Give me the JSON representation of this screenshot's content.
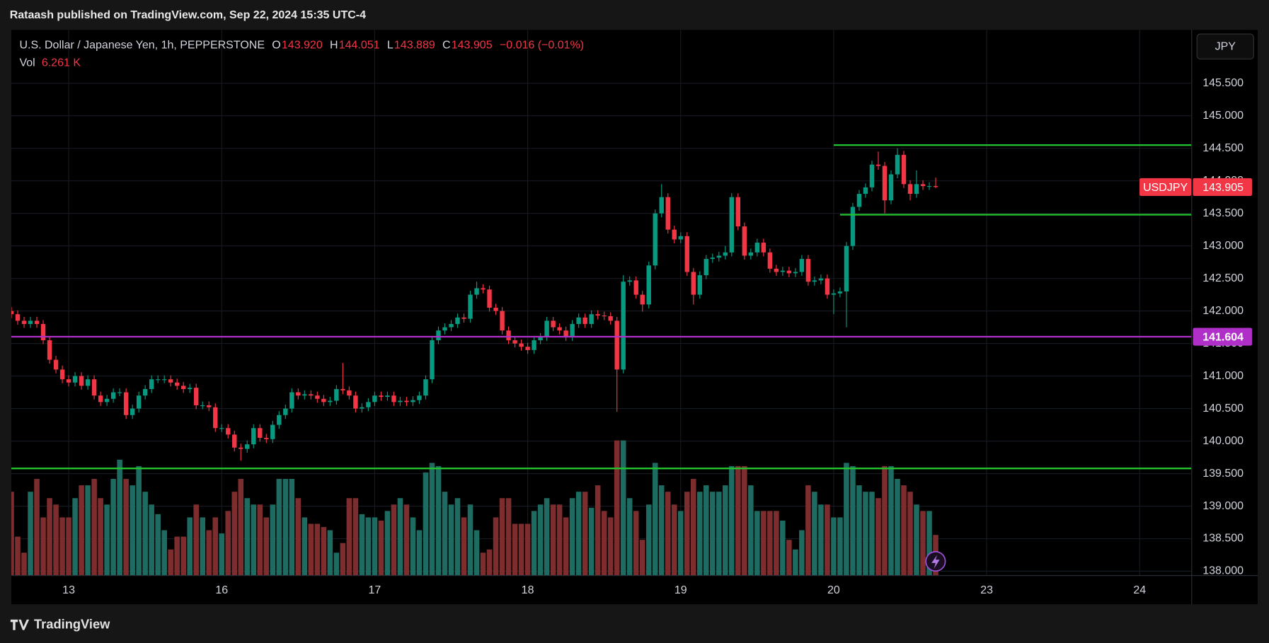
{
  "header": {
    "publisher_line": "Rataash published on TradingView.com, Sep 22, 2024 15:35 UTC-4"
  },
  "toolbar": {
    "currency": "JPY"
  },
  "footer": {
    "brand": "TradingView"
  },
  "chart_data": {
    "type": "candlestick",
    "title": "U.S. Dollar / Japanese Yen, 1h, PEPPERSTONE",
    "symbol": "USDJPY",
    "legend": [
      {
        "label": "O",
        "value": "143.920"
      },
      {
        "label": "H",
        "value": "144.051"
      },
      {
        "label": "L",
        "value": "143.889"
      },
      {
        "label": "C",
        "value": "143.905"
      }
    ],
    "change": "−0.016 (−0.01%)",
    "volume_legend": {
      "label": "Vol",
      "value": "6.261 K"
    },
    "up_color": "#089981",
    "down_color": "#f23645",
    "volume_up_color": "#1d6b61",
    "volume_down_color": "#7d2d2d",
    "xlim": [
      0,
      185.1
    ],
    "xticks": [
      {
        "value": 9,
        "label": "13"
      },
      {
        "value": 33,
        "label": "16"
      },
      {
        "value": 57,
        "label": "17"
      },
      {
        "value": 81,
        "label": "18"
      },
      {
        "value": 105,
        "label": "19"
      },
      {
        "value": 129,
        "label": "20"
      },
      {
        "value": 153,
        "label": "23"
      },
      {
        "value": 177,
        "label": "24"
      }
    ],
    "ylim": [
      137.94,
      146.32
    ],
    "yticks": [
      {
        "value": 138,
        "label": "138.000"
      },
      {
        "value": 138.5,
        "label": "138.500"
      },
      {
        "value": 139,
        "label": "139.000"
      },
      {
        "value": 139.5,
        "label": "139.500"
      },
      {
        "value": 140,
        "label": "140.000"
      },
      {
        "value": 140.5,
        "label": "140.500"
      },
      {
        "value": 141,
        "label": "141.000"
      },
      {
        "value": 141.5,
        "label": "141.500"
      },
      {
        "value": 142,
        "label": "142.000"
      },
      {
        "value": 142.5,
        "label": "142.500"
      },
      {
        "value": 143,
        "label": "143.000"
      },
      {
        "value": 143.5,
        "label": "143.500"
      },
      {
        "value": 144,
        "label": "144.000"
      },
      {
        "value": 144.5,
        "label": "144.500"
      },
      {
        "value": 145,
        "label": "145.000"
      },
      {
        "value": 145.5,
        "label": "145.500"
      }
    ],
    "volume_ylim": [
      0,
      85
    ],
    "grid": true,
    "levels": [
      {
        "value": 144.55,
        "start": 129,
        "color": "#22c32e"
      },
      {
        "value": 143.48,
        "start": 130,
        "color": "#22c32e"
      },
      {
        "value": 141.604,
        "start": 0,
        "color": "#b02fc9",
        "show_label": true
      },
      {
        "value": 139.58,
        "start": 0,
        "color": "#22c32e"
      }
    ],
    "open": [
      142.0,
      141.95,
      141.85,
      141.8,
      141.85,
      141.8,
      141.55,
      141.25,
      141.1,
      140.95,
      140.9,
      141.0,
      140.85,
      140.95,
      140.7,
      140.6,
      140.65,
      140.75,
      140.75,
      140.4,
      140.5,
      140.7,
      140.8,
      140.95,
      140.95,
      140.95,
      140.9,
      140.85,
      140.8,
      140.82,
      140.55,
      140.55,
      140.52,
      140.2,
      140.2,
      140.1,
      139.9,
      139.88,
      139.95,
      140.2,
      140.05,
      140.03,
      140.25,
      140.4,
      140.5,
      140.75,
      140.7,
      140.72,
      140.7,
      140.65,
      140.6,
      140.62,
      140.8,
      140.78,
      140.7,
      140.5,
      140.52,
      140.6,
      140.7,
      140.68,
      140.7,
      140.6,
      140.62,
      140.6,
      140.63,
      140.7,
      140.95,
      141.55,
      141.7,
      141.75,
      141.8,
      141.9,
      141.88,
      142.25,
      142.35,
      142.33,
      142.05,
      142.0,
      141.7,
      141.55,
      141.5,
      141.45,
      141.4,
      141.55,
      141.6,
      141.85,
      141.75,
      141.7,
      141.6,
      141.8,
      141.9,
      141.8,
      141.95,
      141.93,
      141.92,
      141.85,
      141.1,
      142.45,
      142.47,
      142.25,
      142.1,
      142.7,
      143.5,
      143.75,
      143.25,
      143.1,
      143.15,
      142.6,
      142.25,
      142.55,
      142.8,
      142.82,
      142.85,
      142.9,
      143.75,
      143.3,
      142.85,
      142.9,
      143.05,
      142.9,
      142.65,
      142.6,
      142.62,
      142.58,
      142.6,
      142.8,
      142.45,
      142.47,
      142.5,
      142.25,
      142.27,
      142.3,
      143.0,
      143.6,
      143.8,
      143.9,
      144.25,
      144.23,
      143.7,
      144.1,
      144.4,
      143.95,
      143.8,
      143.95,
      143.92,
      143.92
    ],
    "high": [
      142.06,
      142.01,
      141.91,
      141.91,
      141.91,
      141.86,
      141.61,
      141.31,
      141.16,
      141.01,
      141.06,
      141.06,
      141.01,
      141.01,
      140.76,
      140.71,
      140.81,
      140.81,
      140.81,
      140.56,
      140.76,
      140.86,
      141.01,
      141.01,
      141.01,
      141.01,
      140.96,
      140.91,
      140.88,
      140.88,
      140.61,
      140.61,
      140.58,
      140.26,
      140.26,
      140.16,
      139.96,
      140.01,
      140.26,
      140.26,
      140.11,
      140.31,
      140.46,
      140.56,
      140.81,
      140.81,
      140.78,
      140.78,
      140.76,
      140.71,
      140.68,
      140.86,
      141.2,
      140.84,
      140.76,
      140.58,
      140.66,
      140.76,
      140.76,
      140.76,
      140.76,
      140.68,
      140.68,
      140.69,
      140.76,
      141.01,
      141.61,
      141.76,
      141.81,
      141.86,
      141.96,
      141.96,
      142.31,
      142.45,
      142.41,
      142.39,
      142.11,
      142.06,
      141.76,
      141.61,
      141.56,
      141.51,
      141.61,
      141.66,
      141.91,
      141.91,
      141.81,
      141.76,
      141.86,
      141.96,
      141.96,
      142.01,
      142.01,
      141.99,
      141.98,
      141.91,
      142.55,
      142.53,
      142.53,
      142.31,
      142.76,
      143.56,
      143.95,
      143.81,
      143.31,
      143.21,
      143.21,
      142.66,
      142.61,
      142.86,
      142.88,
      142.91,
      143.0,
      143.81,
      143.81,
      143.36,
      142.96,
      143.11,
      143.11,
      142.96,
      142.71,
      142.68,
      142.68,
      142.66,
      142.86,
      142.86,
      142.53,
      142.56,
      142.56,
      142.33,
      142.36,
      143.06,
      143.66,
      143.86,
      143.96,
      144.31,
      144.45,
      144.29,
      144.16,
      144.5,
      144.46,
      144.01,
      144.16,
      144.01,
      143.98,
      144.051
    ],
    "low": [
      141.89,
      141.79,
      141.74,
      141.74,
      141.74,
      141.49,
      141.19,
      141.04,
      140.89,
      140.84,
      140.84,
      140.79,
      140.79,
      140.64,
      140.54,
      140.54,
      140.59,
      140.69,
      140.34,
      140.34,
      140.44,
      140.64,
      140.74,
      140.89,
      140.89,
      140.84,
      140.79,
      140.74,
      140.74,
      140.49,
      140.49,
      140.46,
      140.14,
      140.14,
      140.04,
      139.84,
      139.7,
      139.82,
      139.89,
      139.99,
      139.97,
      139.97,
      140.19,
      140.34,
      140.44,
      140.64,
      140.64,
      140.64,
      140.59,
      140.54,
      140.54,
      140.56,
      140.72,
      140.64,
      140.44,
      140.44,
      140.46,
      140.54,
      140.62,
      140.62,
      140.54,
      140.54,
      140.54,
      140.54,
      140.57,
      140.64,
      140.89,
      141.49,
      141.64,
      141.69,
      141.74,
      141.82,
      141.82,
      142.19,
      142.27,
      141.99,
      141.94,
      141.64,
      141.49,
      141.44,
      141.39,
      141.34,
      141.34,
      141.49,
      141.54,
      141.69,
      141.64,
      141.54,
      141.54,
      141.74,
      141.74,
      141.74,
      141.87,
      141.86,
      141.79,
      140.45,
      141.04,
      142.39,
      142.19,
      141.99,
      142.04,
      142.64,
      143.44,
      143.19,
      143.04,
      143.04,
      142.54,
      142.1,
      142.19,
      142.49,
      142.74,
      142.76,
      142.79,
      142.84,
      143.24,
      142.79,
      142.79,
      142.84,
      142.84,
      142.59,
      142.54,
      142.54,
      142.52,
      142.52,
      142.54,
      142.39,
      142.39,
      142.41,
      142.19,
      141.95,
      142.21,
      141.75,
      142.94,
      143.54,
      143.74,
      143.84,
      144.17,
      143.5,
      143.64,
      144.04,
      143.89,
      143.7,
      143.74,
      143.86,
      143.86,
      143.889
    ],
    "close": [
      141.95,
      141.85,
      141.8,
      141.85,
      141.8,
      141.55,
      141.25,
      141.1,
      140.95,
      140.9,
      141.0,
      140.85,
      140.95,
      140.7,
      140.6,
      140.65,
      140.75,
      140.75,
      140.4,
      140.5,
      140.7,
      140.8,
      140.95,
      140.95,
      140.95,
      140.9,
      140.85,
      140.8,
      140.82,
      140.55,
      140.55,
      140.52,
      140.2,
      140.2,
      140.1,
      139.9,
      139.88,
      139.95,
      140.2,
      140.05,
      140.03,
      140.25,
      140.4,
      140.5,
      140.75,
      140.7,
      140.72,
      140.7,
      140.65,
      140.6,
      140.62,
      140.8,
      140.78,
      140.7,
      140.5,
      140.52,
      140.6,
      140.7,
      140.68,
      140.7,
      140.6,
      140.62,
      140.6,
      140.63,
      140.7,
      140.95,
      141.55,
      141.7,
      141.75,
      141.8,
      141.9,
      141.88,
      142.25,
      142.35,
      142.33,
      142.05,
      142.0,
      141.7,
      141.55,
      141.5,
      141.45,
      141.4,
      141.55,
      141.6,
      141.85,
      141.75,
      141.7,
      141.6,
      141.8,
      141.9,
      141.8,
      141.95,
      141.93,
      141.92,
      141.85,
      141.1,
      142.45,
      142.47,
      142.25,
      142.1,
      142.7,
      143.5,
      143.75,
      143.25,
      143.1,
      143.15,
      142.6,
      142.25,
      142.55,
      142.8,
      142.82,
      142.85,
      142.9,
      143.75,
      143.3,
      142.85,
      142.9,
      143.05,
      142.9,
      142.65,
      142.6,
      142.62,
      142.58,
      142.6,
      142.8,
      142.45,
      142.47,
      142.5,
      142.25,
      142.27,
      142.3,
      143.0,
      143.6,
      143.8,
      143.9,
      144.25,
      144.23,
      143.7,
      144.1,
      144.4,
      143.95,
      143.8,
      143.95,
      143.92,
      143.92,
      143.905
    ],
    "volume": [
      13,
      6,
      3.5,
      13,
      15,
      9,
      12,
      11,
      9,
      9,
      12,
      14,
      14,
      15,
      12,
      11,
      15,
      18,
      15,
      14,
      17,
      13,
      11,
      9.5,
      7,
      4,
      6,
      6,
      9,
      11,
      9,
      7,
      9,
      6.5,
      10,
      13,
      15,
      12,
      11,
      11,
      9,
      11,
      15,
      15,
      15,
      12,
      9,
      8,
      8,
      7.5,
      7,
      3.5,
      5,
      12,
      12,
      9.5,
      9,
      9,
      8.5,
      10,
      11,
      12,
      11,
      9,
      7,
      16,
      17.5,
      17,
      13,
      11,
      12,
      9,
      11,
      7,
      3.5,
      4,
      9,
      12,
      12,
      8,
      8,
      8,
      10,
      11,
      12,
      11,
      11,
      9,
      12,
      13,
      13,
      10.5,
      14,
      10,
      9,
      21,
      21,
      12,
      10,
      5.5,
      11,
      17.5,
      14,
      13,
      11,
      10,
      13,
      15,
      13,
      14,
      13,
      13,
      14,
      17,
      17,
      17,
      14,
      10,
      10,
      10,
      10,
      8.5,
      5.5,
      4,
      7,
      14,
      13,
      11,
      11,
      9,
      9,
      17.5,
      17,
      14,
      13,
      13,
      12,
      17,
      17,
      15,
      14,
      13,
      11,
      10,
      10,
      6.261
    ]
  }
}
